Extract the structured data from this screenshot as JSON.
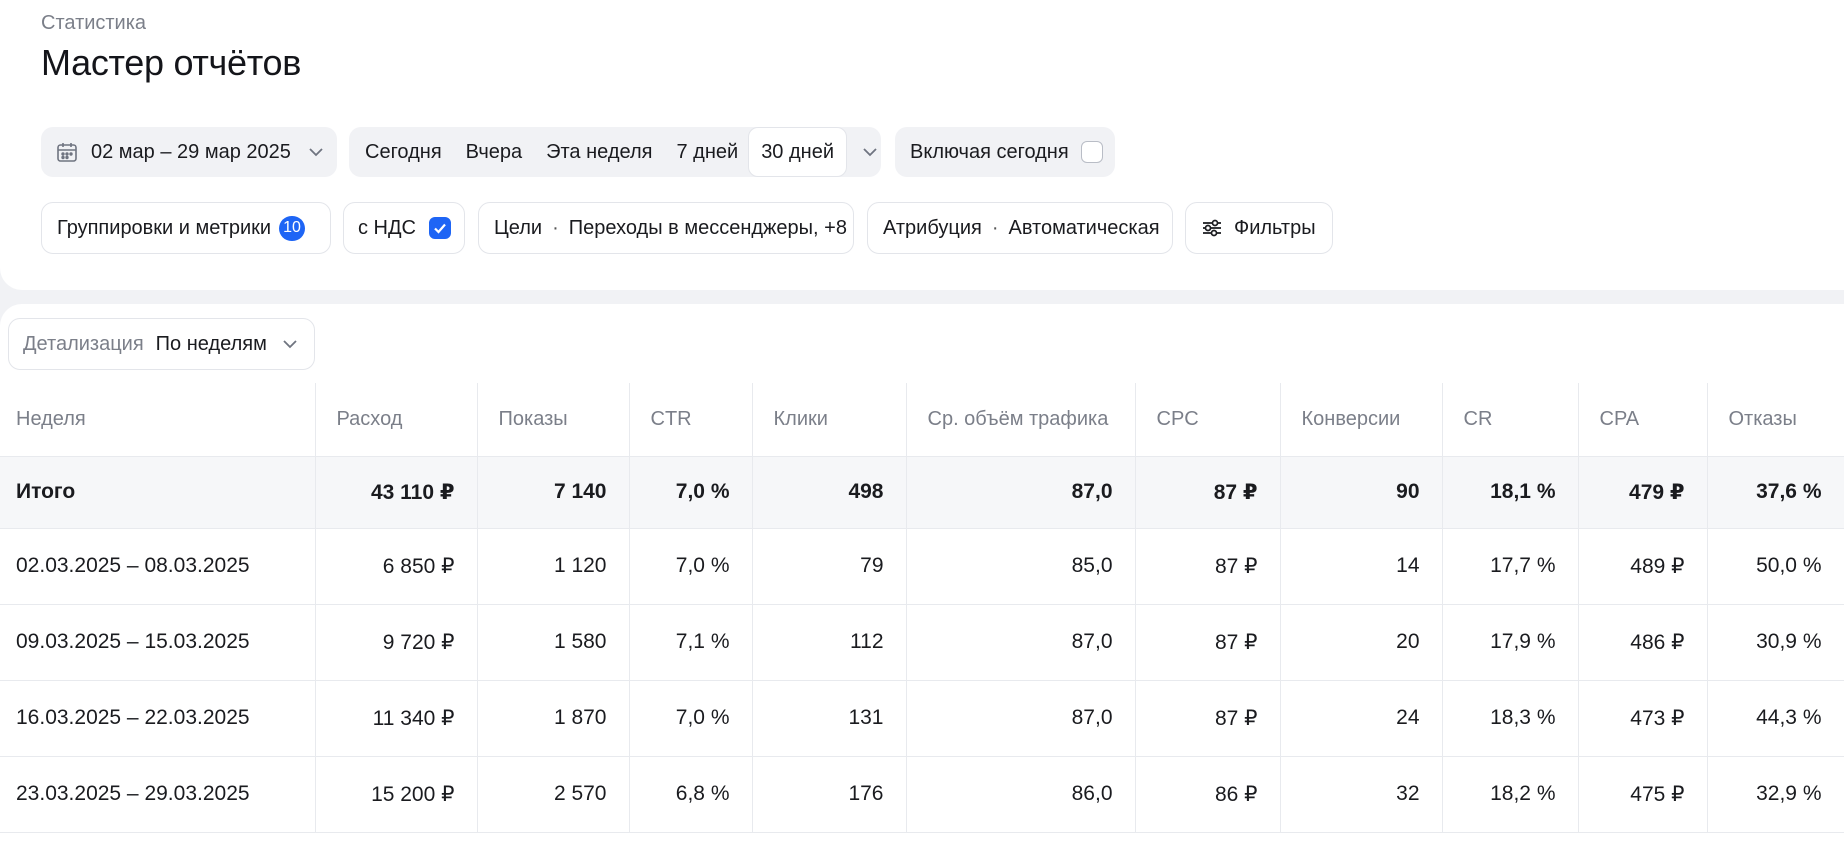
{
  "header": {
    "breadcrumb": "Статистика",
    "title": "Мастер отчётов"
  },
  "period": {
    "date_range": "02 мар – 29 мар 2025",
    "presets": [
      "Сегодня",
      "Вчера",
      "Эта неделя",
      "7 дней",
      "30 дней"
    ],
    "active_preset": "30 дней",
    "include_today_label": "Включая сегодня",
    "include_today_checked": false
  },
  "settings": {
    "metrics_label": "Группировки и метрики",
    "metrics_count": "10",
    "vat_label": "с НДС",
    "vat_checked": true,
    "goals_label": "Цели",
    "goals_value": "Переходы в мессенджеры, +8",
    "attribution_label": "Атрибуция",
    "attribution_value": "Автоматическая",
    "filters_label": "Фильтры",
    "separator": "·"
  },
  "detail": {
    "label": "Детализация",
    "value": "По неделям"
  },
  "table": {
    "columns": [
      "Неделя",
      "Расход",
      "Показы",
      "CTR",
      "Клики",
      "Ср. объём трафика",
      "CPC",
      "Конверсии",
      "CR",
      "CPA",
      "Отказы"
    ],
    "total": [
      "Итого",
      "43 110 ₽",
      "7 140",
      "7,0 %",
      "498",
      "87,0",
      "87 ₽",
      "90",
      "18,1 %",
      "479 ₽",
      "37,6 %"
    ],
    "rows": [
      [
        "02.03.2025 – 08.03.2025",
        "6 850 ₽",
        "1 120",
        "7,0 %",
        "79",
        "85,0",
        "87 ₽",
        "14",
        "17,7 %",
        "489 ₽",
        "50,0 %"
      ],
      [
        "09.03.2025 – 15.03.2025",
        "9 720 ₽",
        "1 580",
        "7,1 %",
        "112",
        "87,0",
        "87 ₽",
        "20",
        "17,9 %",
        "486 ₽",
        "30,9 %"
      ],
      [
        "16.03.2025 – 22.03.2025",
        "11 340 ₽",
        "1 870",
        "7,0 %",
        "131",
        "87,0",
        "87 ₽",
        "24",
        "18,3 %",
        "473 ₽",
        "44,3 %"
      ],
      [
        "23.03.2025 – 29.03.2025",
        "15 200 ₽",
        "2 570",
        "6,8 %",
        "176",
        "86,0",
        "86 ₽",
        "32",
        "18,2 %",
        "475 ₽",
        "32,9 %"
      ]
    ]
  },
  "colors": {
    "accent": "#1e65f5",
    "background": "#f1f2f5",
    "muted_text": "#7b7f89"
  }
}
